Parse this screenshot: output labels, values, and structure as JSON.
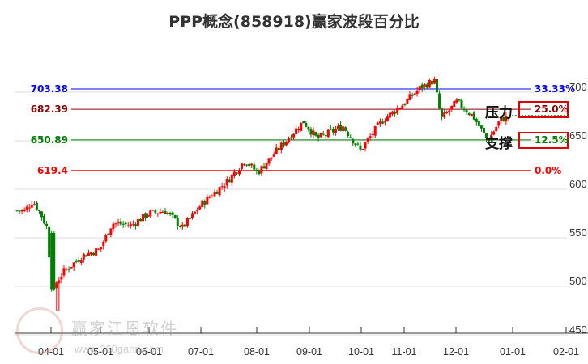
{
  "header": {
    "title": "PPP概念(858918)赢家波段百分比"
  },
  "watermark": {
    "text": "赢家江恩软件",
    "url": "www.360gann.com"
  },
  "annotations": {
    "resistance": "压力",
    "support": "支撑"
  },
  "colors": {
    "up": "#ff0000",
    "down": "#008000",
    "level_703": "#0000ff",
    "level_682": "#8b0000",
    "level_650": "#008000",
    "level_619": "#ff0000",
    "grid": "#dddddd"
  },
  "chart_data": {
    "type": "candlestick",
    "title": "PPP概念(858918)赢家波段百分比",
    "xlabel": "",
    "ylabel": "",
    "ylim": [
      450,
      720
    ],
    "y_ticks": [
      450,
      500,
      550,
      600,
      650,
      700
    ],
    "x_ticks": [
      "04-01",
      "05-01",
      "06-01",
      "07-01",
      "08-01",
      "09-01",
      "10-01",
      "11-01",
      "12-01",
      "01-01",
      "02-01"
    ],
    "grid": true,
    "levels": [
      {
        "price": "703.38",
        "percent": "33.33%",
        "color": "#0000ff"
      },
      {
        "price": "682.39",
        "percent": "25.0%",
        "color": "#8b0000",
        "boxed": true
      },
      {
        "price": "650.89",
        "percent": "12.5%",
        "color": "#008000",
        "boxed": true
      },
      {
        "price": "619.4",
        "percent": "0.0%",
        "color": "#ff0000"
      }
    ],
    "approx_close_trend": [
      {
        "x": "03-15",
        "close": 578
      },
      {
        "x": "03-20",
        "close": 588
      },
      {
        "x": "03-25",
        "close": 575
      },
      {
        "x": "03-29",
        "close": 560
      },
      {
        "x": "04-01",
        "close": 497
      },
      {
        "x": "04-08",
        "close": 515
      },
      {
        "x": "04-20",
        "close": 532
      },
      {
        "x": "04-30",
        "close": 538
      },
      {
        "x": "05-08",
        "close": 565
      },
      {
        "x": "05-20",
        "close": 563
      },
      {
        "x": "05-31",
        "close": 575
      },
      {
        "x": "06-10",
        "close": 578
      },
      {
        "x": "06-20",
        "close": 560
      },
      {
        "x": "07-01",
        "close": 585
      },
      {
        "x": "07-15",
        "close": 608
      },
      {
        "x": "07-25",
        "close": 630
      },
      {
        "x": "08-01",
        "close": 617
      },
      {
        "x": "08-15",
        "close": 645
      },
      {
        "x": "08-28",
        "close": 670
      },
      {
        "x": "09-05",
        "close": 652
      },
      {
        "x": "09-20",
        "close": 665
      },
      {
        "x": "09-30",
        "close": 640
      },
      {
        "x": "10-15",
        "close": 670
      },
      {
        "x": "10-31",
        "close": 688
      },
      {
        "x": "11-10",
        "close": 705
      },
      {
        "x": "11-18",
        "close": 712
      },
      {
        "x": "11-22",
        "close": 672
      },
      {
        "x": "12-01",
        "close": 690
      },
      {
        "x": "12-10",
        "close": 675
      },
      {
        "x": "12-18",
        "close": 650
      },
      {
        "x": "12-25",
        "close": 672
      },
      {
        "x": "12-31",
        "close": 675
      }
    ]
  }
}
